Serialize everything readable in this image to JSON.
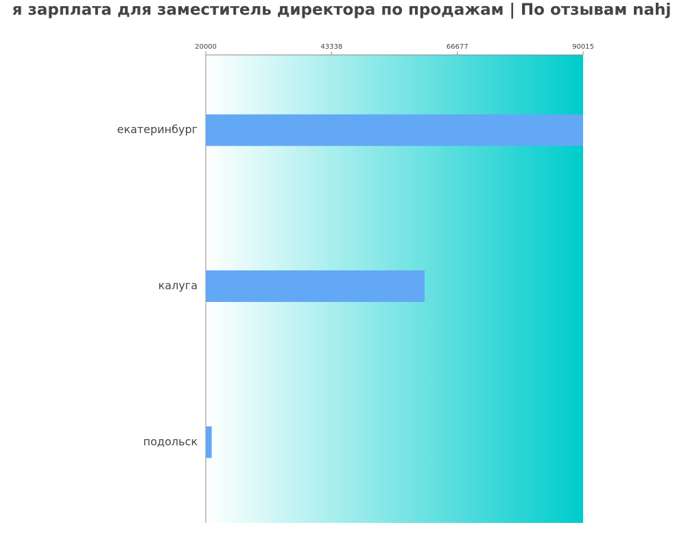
{
  "chart_data": {
    "type": "bar",
    "orientation": "horizontal",
    "title": "я зарплата для заместитель директора по продажам | По отзывам nahj",
    "categories": [
      "екатеринбург",
      "калуга",
      "подольск"
    ],
    "values": [
      90015,
      60600,
      21100
    ],
    "color": "#63a8f5",
    "xlim": [
      20000,
      90015
    ],
    "xticks": [
      20000,
      43338,
      66677,
      90015
    ]
  }
}
